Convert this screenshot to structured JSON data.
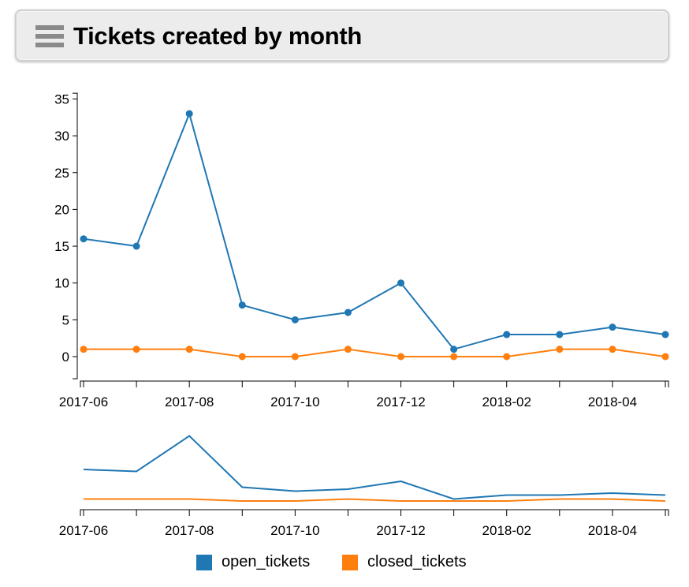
{
  "header": {
    "title": "Tickets created by month",
    "menu_icon": "hamburger-menu-icon"
  },
  "chart_data": {
    "type": "line",
    "title": "Tickets created by month",
    "xlabel": "",
    "ylabel": "",
    "x": [
      "2017-06",
      "2017-07",
      "2017-08",
      "2017-09",
      "2017-10",
      "2017-11",
      "2017-12",
      "2018-01",
      "2018-02",
      "2018-03",
      "2018-04",
      "2018-05"
    ],
    "x_tick_labels": [
      "2017-06",
      "2017-08",
      "2017-10",
      "2017-12",
      "2018-02",
      "2018-04"
    ],
    "y_ticks": [
      0,
      5,
      10,
      15,
      20,
      25,
      30,
      35
    ],
    "ylim": [
      -3,
      36
    ],
    "grid": false,
    "legend_position": "bottom",
    "has_context_brush": true,
    "series": [
      {
        "name": "open_tickets",
        "color": "#1f77b4",
        "values": [
          16,
          15,
          33,
          7,
          5,
          6,
          10,
          1,
          3,
          3,
          4,
          3
        ]
      },
      {
        "name": "closed_tickets",
        "color": "#ff7f0e",
        "values": [
          1,
          1,
          1,
          0,
          0,
          1,
          0,
          0,
          0,
          1,
          1,
          0
        ]
      }
    ]
  }
}
